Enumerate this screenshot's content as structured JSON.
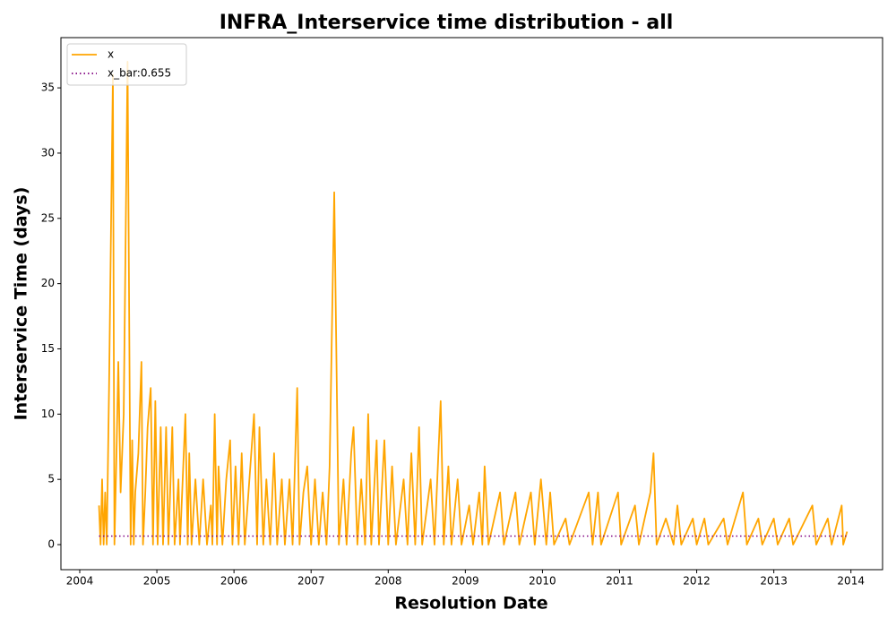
{
  "chart_data": {
    "type": "line",
    "title": "INFRA_Interservice time distribution - all",
    "xlabel": "Resolution Date",
    "ylabel": "Interservice Time (days)",
    "xlim": [
      2003.756,
      2014.41
    ],
    "ylim": [
      -1.92,
      38.85
    ],
    "xticks": [
      2004,
      2005,
      2006,
      2007,
      2008,
      2009,
      2010,
      2011,
      2012,
      2013,
      2014
    ],
    "yticks": [
      0,
      5,
      10,
      15,
      20,
      25,
      30,
      35
    ],
    "legend": "upper left",
    "series": [
      {
        "name": "x",
        "color": "#ffa500",
        "style": "solid",
        "x": [
          2004.25,
          2004.27,
          2004.29,
          2004.31,
          2004.33,
          2004.35,
          2004.38,
          2004.43,
          2004.45,
          2004.48,
          2004.5,
          2004.53,
          2004.57,
          2004.62,
          2004.66,
          2004.68,
          2004.7,
          2004.72,
          2004.76,
          2004.8,
          2004.82,
          2004.85,
          2004.88,
          2004.92,
          2004.95,
          2004.98,
          2005.01,
          2005.05,
          2005.08,
          2005.12,
          2005.15,
          2005.2,
          2005.23,
          2005.28,
          2005.3,
          2005.37,
          2005.4,
          2005.42,
          2005.45,
          2005.5,
          2005.55,
          2005.6,
          2005.65,
          2005.7,
          2005.72,
          2005.75,
          2005.78,
          2005.8,
          2005.85,
          2005.9,
          2005.95,
          2005.98,
          2006.02,
          2006.06,
          2006.1,
          2006.14,
          2006.2,
          2006.26,
          2006.3,
          2006.33,
          2006.38,
          2006.42,
          2006.47,
          2006.52,
          2006.56,
          2006.62,
          2006.66,
          2006.72,
          2006.76,
          2006.82,
          2006.85,
          2006.9,
          2006.95,
          2007.0,
          2007.05,
          2007.1,
          2007.15,
          2007.2,
          2007.24,
          2007.3,
          2007.36,
          2007.42,
          2007.46,
          2007.52,
          2007.55,
          2007.6,
          2007.65,
          2007.7,
          2007.74,
          2007.78,
          2007.85,
          2007.88,
          2007.95,
          2008.0,
          2008.05,
          2008.1,
          2008.2,
          2008.25,
          2008.3,
          2008.35,
          2008.4,
          2008.44,
          2008.55,
          2008.6,
          2008.68,
          2008.72,
          2008.78,
          2008.82,
          2008.9,
          2008.95,
          2009.05,
          2009.1,
          2009.18,
          2009.22,
          2009.25,
          2009.3,
          2009.45,
          2009.5,
          2009.65,
          2009.7,
          2009.85,
          2009.9,
          2009.98,
          2010.05,
          2010.1,
          2010.15,
          2010.3,
          2010.35,
          2010.6,
          2010.65,
          2010.72,
          2010.76,
          2010.98,
          2011.02,
          2011.2,
          2011.25,
          2011.4,
          2011.44,
          2011.48,
          2011.6,
          2011.7,
          2011.75,
          2011.8,
          2011.95,
          2012.0,
          2012.1,
          2012.15,
          2012.35,
          2012.4,
          2012.6,
          2012.65,
          2012.8,
          2012.85,
          2013.0,
          2013.05,
          2013.2,
          2013.25,
          2013.5,
          2013.55,
          2013.7,
          2013.75,
          2013.88,
          2013.9,
          2013.95
        ],
        "values": [
          3,
          0,
          5,
          0,
          4,
          0,
          12,
          36,
          0,
          8,
          14,
          4,
          10,
          37,
          0,
          8,
          0,
          4,
          7,
          14,
          0,
          4,
          9,
          12,
          0,
          11,
          0,
          9,
          0,
          9,
          0,
          9,
          0,
          5,
          0,
          10,
          0,
          7,
          0,
          5,
          0,
          5,
          0,
          3,
          0,
          10,
          0,
          6,
          0,
          5,
          8,
          0,
          6,
          0,
          7,
          0,
          5,
          10,
          0,
          9,
          0,
          5,
          0,
          7,
          0,
          5,
          0,
          5,
          0,
          12,
          0,
          4,
          6,
          0,
          5,
          0,
          4,
          0,
          6,
          27,
          0,
          5,
          0,
          7,
          9,
          0,
          5,
          0,
          10,
          0,
          8,
          0,
          8,
          0,
          6,
          0,
          5,
          0,
          7,
          0,
          9,
          0,
          5,
          0,
          11,
          0,
          6,
          0,
          5,
          0,
          3,
          0,
          4,
          0,
          6,
          0,
          4,
          0,
          4,
          0,
          4,
          0,
          5,
          0,
          4,
          0,
          2,
          0,
          4,
          0,
          4,
          0,
          4,
          0,
          3,
          0,
          4,
          7,
          0,
          2,
          0,
          3,
          0,
          2,
          0,
          2,
          0,
          2,
          0,
          4,
          0,
          2,
          0,
          2,
          0,
          2,
          0,
          3,
          0,
          2,
          0,
          3,
          0,
          1
        ]
      },
      {
        "name": "x_bar:0.655",
        "color": "#800080",
        "style": "dotted",
        "x": [
          2004.25,
          2013.95
        ],
        "values": [
          0.655,
          0.655
        ]
      }
    ]
  }
}
